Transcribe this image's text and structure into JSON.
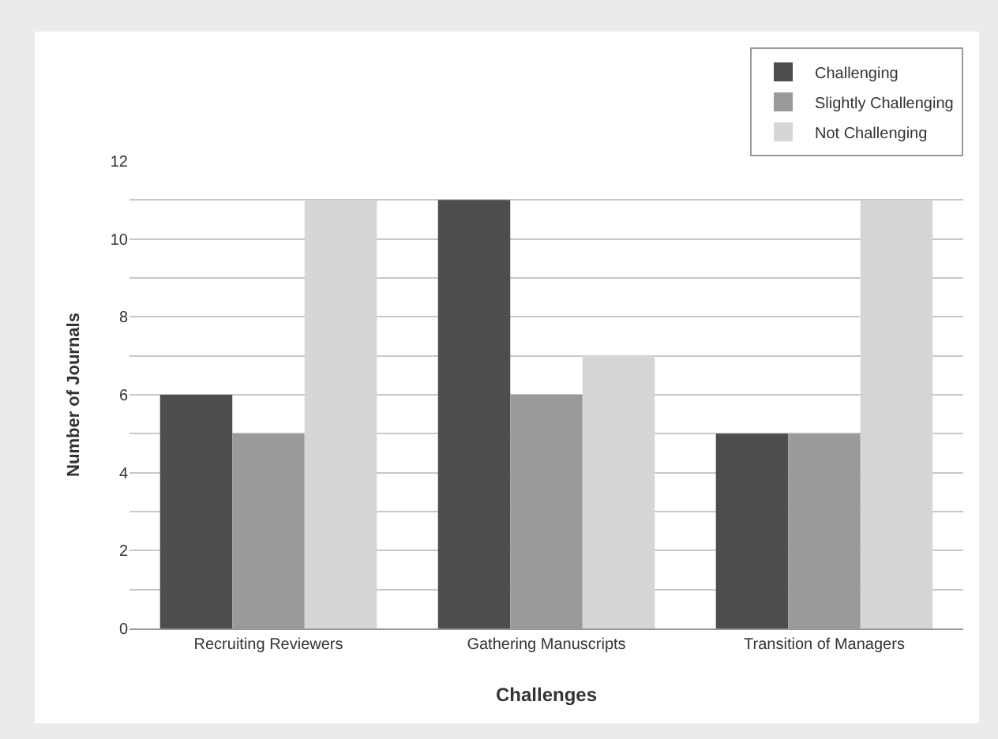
{
  "chart_data": {
    "type": "bar",
    "xlabel": "Challenges",
    "ylabel": "Number of Journals",
    "categories": [
      "Recruiting Reviewers",
      "Gathering Manuscripts",
      "Transition of Managers"
    ],
    "series": [
      {
        "name": "Challenging",
        "color": "#4d4d4f",
        "values": [
          6,
          11,
          5
        ]
      },
      {
        "name": "Slightly Challenging",
        "color": "#9a9a9c",
        "values": [
          5,
          6,
          5
        ]
      },
      {
        "name": "Not Challenging",
        "color": "#d6d6d8",
        "values": [
          11,
          7,
          11
        ]
      }
    ],
    "ylim": [
      0,
      12
    ],
    "yticks": [
      0,
      {
        "value": 1,
        "label": null
      },
      2,
      {
        "value": 3,
        "label": null
      },
      4,
      {
        "value": 5,
        "label": null
      },
      6,
      {
        "value": 7,
        "label": null
      },
      8,
      {
        "value": 9,
        "label": null
      },
      10,
      {
        "value": 11,
        "label": null
      },
      12
    ],
    "grid": true,
    "legend": "top right"
  }
}
